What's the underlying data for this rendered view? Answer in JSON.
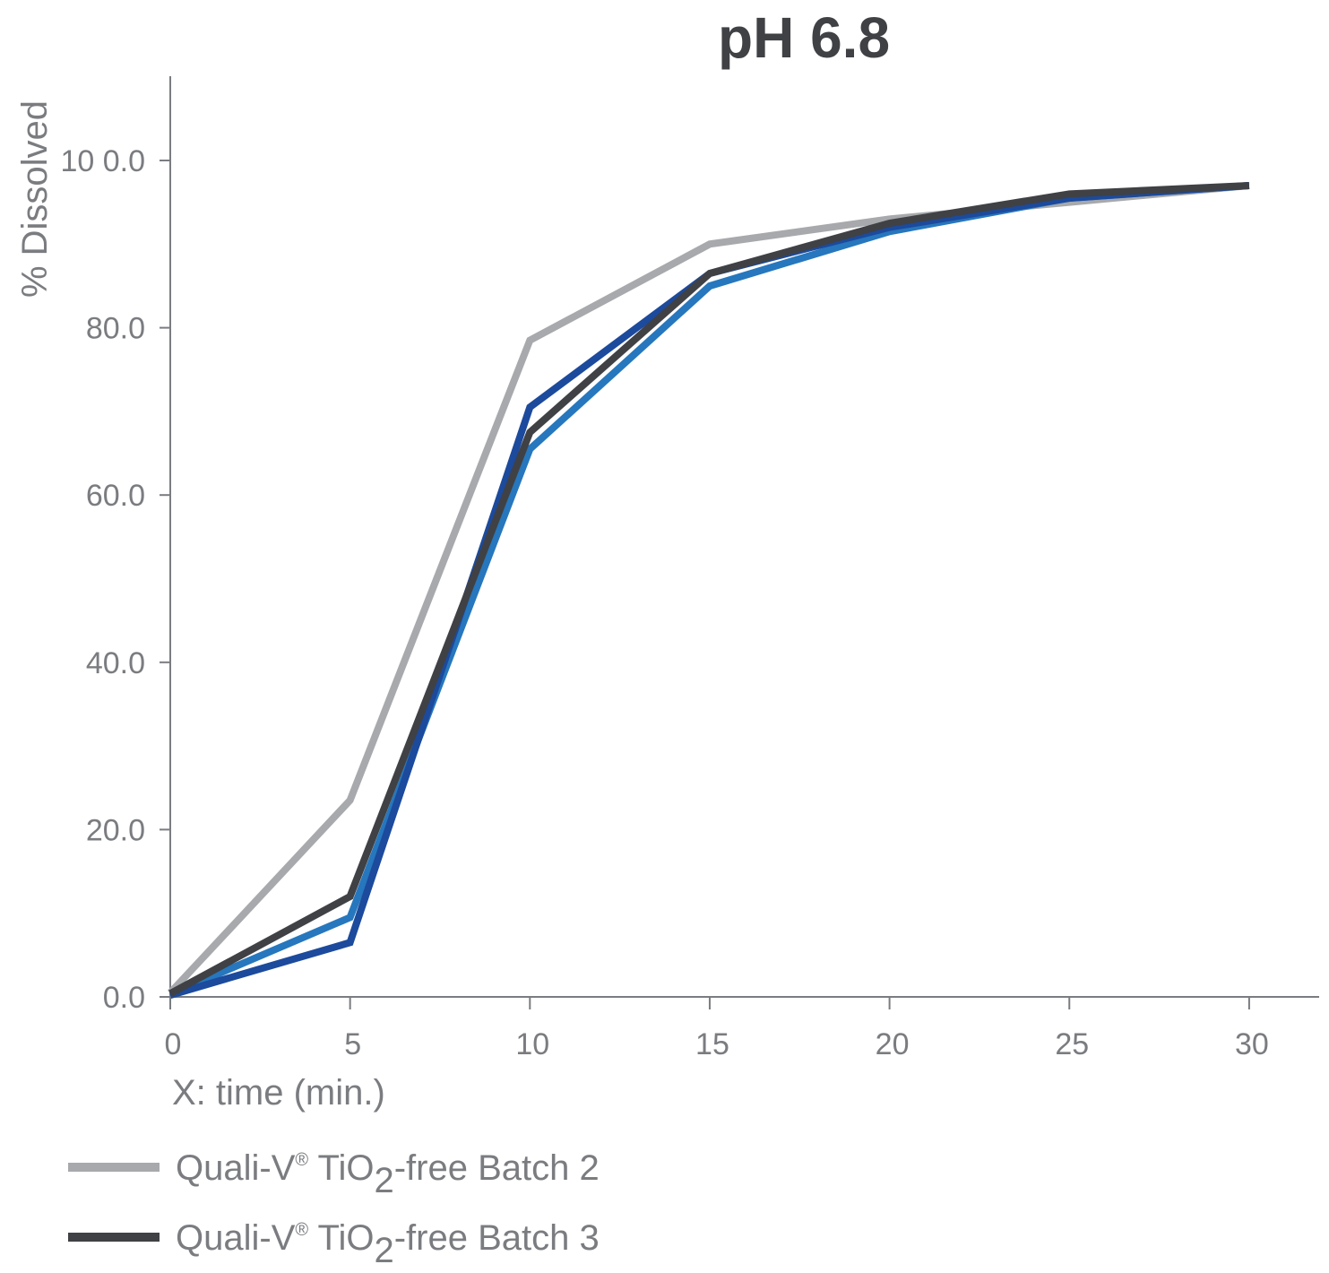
{
  "chart_data": {
    "type": "line",
    "title": "pH 6.8",
    "xlabel": "X: time (min.)",
    "ylabel": "% Dissolved",
    "x": [
      0,
      5,
      10,
      15,
      20,
      25,
      30
    ],
    "xlim": [
      0,
      32
    ],
    "ylim": [
      0,
      110
    ],
    "x_ticks": [
      0,
      5,
      10,
      15,
      20,
      25,
      30
    ],
    "x_tick_labels": [
      "0",
      "5",
      "10",
      "15",
      "20",
      "25",
      "30"
    ],
    "y_ticks": [
      0,
      20,
      40,
      60,
      80,
      100
    ],
    "y_tick_labels": [
      "0.0",
      "20.0",
      "40.0",
      "60.0",
      "80.0",
      "10 0.0"
    ],
    "grid": false,
    "legend_position": "bottom-left",
    "series": [
      {
        "name": "Quali-V® TiO2-free Batch 2",
        "legend_parts": {
          "prefix": "Quali-V",
          "mark": "®",
          "mid": " TiO",
          "sub": "2",
          "suffix": "-free Batch 2"
        },
        "color": "#a7a9ac",
        "in_legend": true,
        "values": [
          0.5,
          23.5,
          78.5,
          90,
          93,
          95,
          97
        ]
      },
      {
        "name": "",
        "color": "#2677bd",
        "in_legend": false,
        "values": [
          0.3,
          9.5,
          65.5,
          85,
          91.5,
          95.5,
          97
        ]
      },
      {
        "name": "",
        "color": "#1c4a9c",
        "in_legend": false,
        "values": [
          0.2,
          6.5,
          70.5,
          86.5,
          92,
          95.5,
          97
        ]
      },
      {
        "name": "Quali-V® TiO2-free Batch 3",
        "legend_parts": {
          "prefix": "Quali-V",
          "mark": "®",
          "mid": " TiO",
          "sub": "2",
          "suffix": "-free Batch 3"
        },
        "color": "#3f4145",
        "in_legend": true,
        "values": [
          0.4,
          12,
          67.5,
          86.5,
          92.5,
          96,
          97
        ]
      }
    ]
  }
}
